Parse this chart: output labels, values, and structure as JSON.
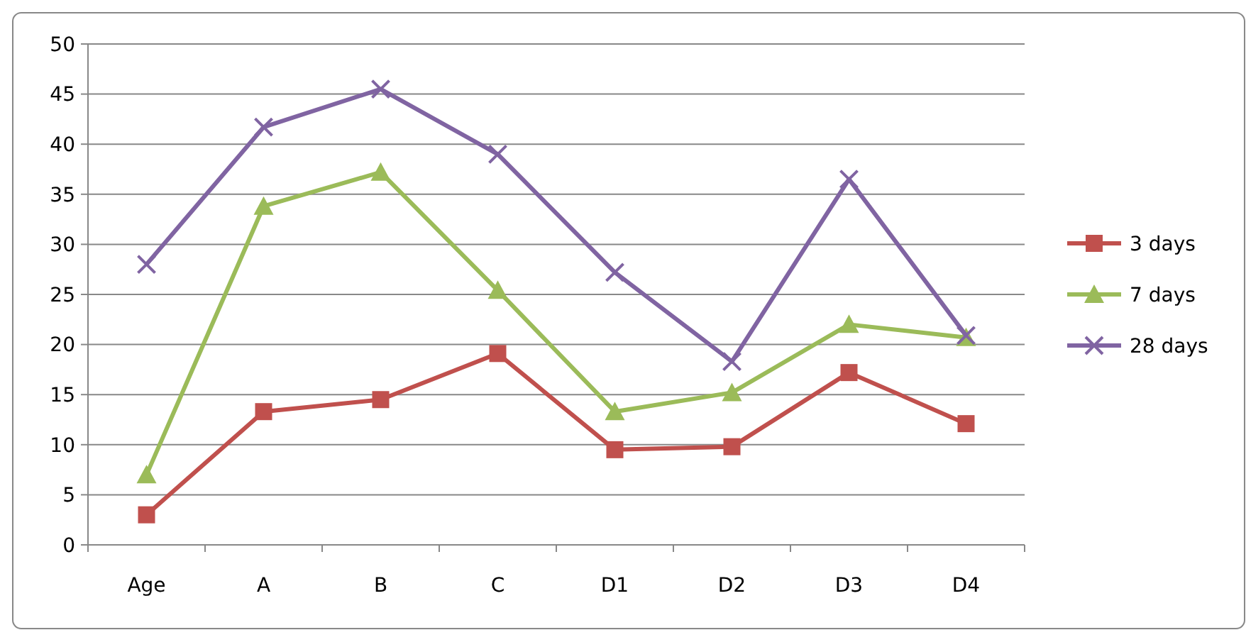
{
  "chart_data": {
    "type": "line",
    "categories": [
      "Age",
      "A",
      "B",
      "C",
      "D1",
      "D2",
      "D3",
      "D4"
    ],
    "series": [
      {
        "name": "3 days",
        "color": "#c0504d",
        "marker": "square",
        "values": [
          3.0,
          13.3,
          14.5,
          19.1,
          9.5,
          9.8,
          17.2,
          12.1
        ]
      },
      {
        "name": "7 days",
        "color": "#9bbb59",
        "marker": "triangle",
        "values": [
          7.0,
          33.8,
          37.2,
          25.4,
          13.3,
          15.2,
          22.0,
          20.7
        ]
      },
      {
        "name": "28 days",
        "color": "#8064a2",
        "marker": "cross",
        "values": [
          28.0,
          41.7,
          45.5,
          39.0,
          27.2,
          18.3,
          36.5,
          20.9
        ]
      }
    ],
    "ylim": [
      0,
      50
    ],
    "yticks": [
      0,
      5,
      10,
      15,
      20,
      25,
      30,
      35,
      40,
      45,
      50
    ],
    "grid": "y",
    "legend": "right"
  }
}
